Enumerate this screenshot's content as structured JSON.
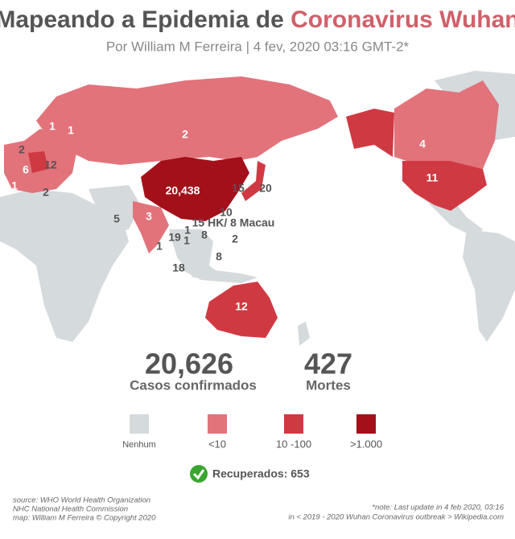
{
  "header": {
    "title_part1": "Mapeando a Epidemia de",
    "title_part2": "Coronavirus Wuhan",
    "subtitle": "Por William M Ferreira | 4 fev, 2020 03:16 GMT-2*"
  },
  "map": {
    "labels": [
      "1",
      "1",
      "2",
      "2",
      "6",
      "12",
      "1",
      "2",
      "20,438",
      "15",
      "20",
      "10",
      "15 HK/ 8 Macau",
      "5",
      "3",
      "19",
      "1",
      "1",
      "8",
      "2",
      "1",
      "8",
      "18",
      "4",
      "11",
      "12"
    ]
  },
  "stats": {
    "confirmed": "20,626",
    "confirmed_label": "Casos confirmados",
    "deaths": "427",
    "deaths_label": "Mortes"
  },
  "legend": {
    "items": [
      {
        "label": "Nenhum",
        "color": "#d5dadd"
      },
      {
        "label": "<10",
        "color": "#e2737b"
      },
      {
        "label": "10 -100",
        "color": "#cf3a42"
      },
      {
        "label": ">1.000",
        "color": "#a3101a"
      }
    ]
  },
  "recovered": "Recuperados: 653",
  "footer": {
    "source": [
      "source: WHO World Health Organization",
      "NHC National Health Commission",
      "map: William M Ferreira © Copyright 2020"
    ],
    "note": [
      "*note: Last update in 4 feb 2020, 03:16",
      "in < 2019 - 2020 Wuhan Coronavirus outbreak > Wikipedia.com"
    ]
  }
}
